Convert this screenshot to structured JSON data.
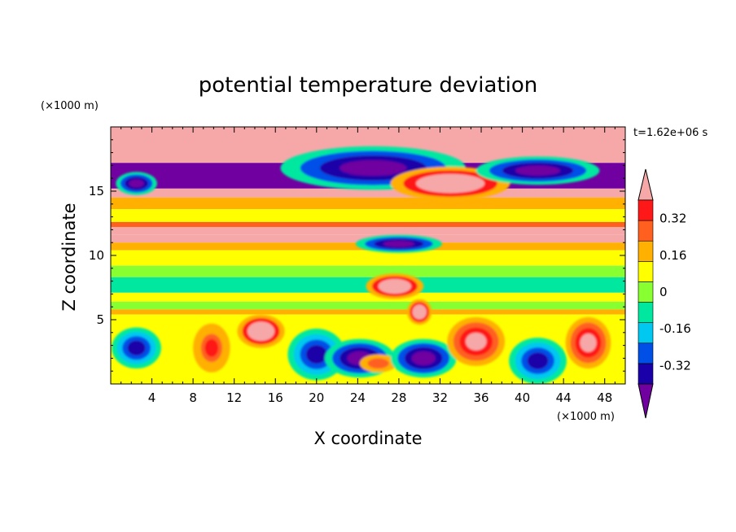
{
  "chart_data": {
    "type": "heatmap",
    "title": "potential temperature deviation",
    "xlabel": "X coordinate",
    "ylabel": "Z coordinate",
    "x_unit": "(×1000 m)",
    "y_unit": "(×1000 m)",
    "time_label": "t=1.62e+06 s",
    "xlim": [
      0,
      50
    ],
    "ylim": [
      0,
      20
    ],
    "x_ticks": [
      "4",
      "8",
      "12",
      "16",
      "20",
      "24",
      "28",
      "32",
      "36",
      "40",
      "44",
      "48"
    ],
    "y_ticks": [
      "5",
      "10",
      "15"
    ],
    "colorbar": {
      "levels": [
        -0.4,
        -0.32,
        -0.24,
        -0.16,
        -0.08,
        0,
        0.08,
        0.16,
        0.24,
        0.32,
        0.4
      ],
      "labels": [
        "0.32",
        "0.16",
        "0",
        "-0.16",
        "-0.32"
      ],
      "label_values": [
        0.32,
        0.16,
        0,
        -0.16,
        -0.32
      ],
      "colors_low_to_high": [
        "#7000a0",
        "#1a00a8",
        "#0050e8",
        "#00c8f0",
        "#00e8a0",
        "#88ff30",
        "#ffff00",
        "#ffb000",
        "#ff6020",
        "#ff1818",
        "#f6a8a8"
      ],
      "extend": "both"
    },
    "bands": [
      {
        "z": [
          17.2,
          20.0
        ],
        "value": 0.45
      },
      {
        "z": [
          15.2,
          17.2
        ],
        "value": -0.45
      },
      {
        "z": [
          14.5,
          15.2
        ],
        "value": 0.45
      },
      {
        "z": [
          13.6,
          14.5
        ],
        "value": 0.08
      },
      {
        "z": [
          12.6,
          13.6
        ],
        "value": 0.02
      },
      {
        "z": [
          12.2,
          12.6
        ],
        "value": 0.2
      },
      {
        "z": [
          11.6,
          12.2
        ],
        "value": 0.33
      },
      {
        "z": [
          11.0,
          11.6
        ],
        "value": 0.45
      },
      {
        "z": [
          10.4,
          11.0
        ],
        "value": 0.15
      },
      {
        "z": [
          9.2,
          10.4
        ],
        "value": 0.05
      },
      {
        "z": [
          8.3,
          9.2
        ],
        "value": -0.02
      },
      {
        "z": [
          7.1,
          8.3
        ],
        "value": -0.1
      },
      {
        "z": [
          6.4,
          7.1
        ],
        "value": 0.0
      },
      {
        "z": [
          5.8,
          6.4
        ],
        "value": -0.08
      },
      {
        "z": [
          5.4,
          5.8
        ],
        "value": 0.08
      },
      {
        "z": [
          0.0,
          5.4
        ],
        "value": 0.0
      }
    ],
    "blobs": [
      {
        "x": 2.5,
        "z": 2.8,
        "rx": 2.4,
        "rz": 1.6,
        "value": -0.35
      },
      {
        "x": 9.8,
        "z": 2.8,
        "rx": 1.8,
        "rz": 1.9,
        "value": 0.25
      },
      {
        "x": 14.6,
        "z": 4.1,
        "rx": 2.3,
        "rz": 1.3,
        "value": 0.45
      },
      {
        "x": 20.0,
        "z": 2.3,
        "rx": 2.8,
        "rz": 2.0,
        "value": -0.4
      },
      {
        "x": 24.2,
        "z": 2.0,
        "rx": 3.4,
        "rz": 1.5,
        "value": -0.5
      },
      {
        "x": 26.0,
        "z": 1.6,
        "rx": 1.8,
        "rz": 0.7,
        "value": 0.2
      },
      {
        "x": 30.4,
        "z": 2.0,
        "rx": 3.2,
        "rz": 1.5,
        "value": -0.45
      },
      {
        "x": 35.5,
        "z": 3.3,
        "rx": 2.8,
        "rz": 1.9,
        "value": 0.33
      },
      {
        "x": 41.5,
        "z": 1.8,
        "rx": 2.8,
        "rz": 1.8,
        "value": -0.38
      },
      {
        "x": 46.4,
        "z": 3.2,
        "rx": 2.2,
        "rz": 2.0,
        "value": 0.32
      },
      {
        "x": 25.5,
        "z": 16.8,
        "rx": 9.0,
        "rz": 1.7,
        "value": -0.45
      },
      {
        "x": 33.0,
        "z": 15.6,
        "rx": 5.8,
        "rz": 1.3,
        "value": 0.45
      },
      {
        "x": 41.5,
        "z": 16.6,
        "rx": 6.0,
        "rz": 1.1,
        "value": -0.45
      },
      {
        "x": 28.0,
        "z": 10.9,
        "rx": 4.2,
        "rz": 0.7,
        "value": -0.45
      },
      {
        "x": 27.6,
        "z": 7.6,
        "rx": 2.8,
        "rz": 1.0,
        "value": 0.45
      },
      {
        "x": 30.0,
        "z": 5.6,
        "rx": 1.2,
        "rz": 1.0,
        "value": 0.45
      },
      {
        "x": 2.5,
        "z": 15.6,
        "rx": 2.0,
        "rz": 0.9,
        "value": -0.45
      }
    ]
  }
}
